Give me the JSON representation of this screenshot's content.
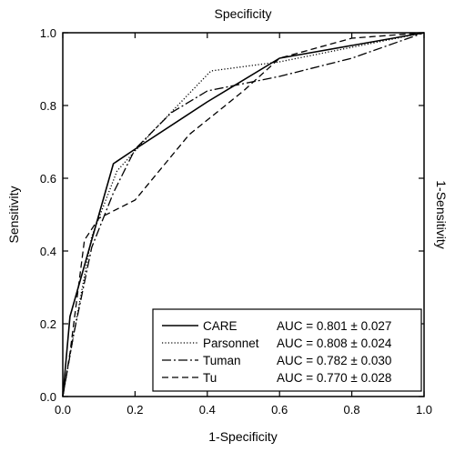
{
  "chart_data": {
    "type": "line",
    "xlabel": "1-Specificity",
    "ylabel": "Sensitivity",
    "top_label": "Specificity",
    "right_label": "1-Sensitivity",
    "xlim": [
      0,
      1
    ],
    "ylim": [
      0,
      1
    ],
    "x_ticks": [
      "0.0",
      "0.2",
      "0.4",
      "0.6",
      "0.8",
      "1.0"
    ],
    "y_ticks": [
      "0.0",
      "0.2",
      "0.4",
      "0.6",
      "0.8",
      "1.0"
    ],
    "grid": false,
    "legend_position": "bottom-right",
    "series": [
      {
        "name": "CARE",
        "auc": "AUC = 0.801 ± 0.027",
        "dash": "solid",
        "x": [
          0.0,
          0.02,
          0.14,
          0.2,
          0.4,
          0.6,
          0.8,
          1.0
        ],
        "y": [
          0.0,
          0.22,
          0.64,
          0.68,
          0.81,
          0.93,
          0.965,
          1.0
        ]
      },
      {
        "name": "Parsonnet",
        "auc": "AUC = 0.808 ± 0.024",
        "dash": "dotted",
        "x": [
          0.0,
          0.03,
          0.08,
          0.15,
          0.25,
          0.41,
          0.6,
          0.8,
          1.0
        ],
        "y": [
          0.0,
          0.17,
          0.44,
          0.62,
          0.73,
          0.895,
          0.92,
          0.96,
          1.0
        ]
      },
      {
        "name": "Tuman",
        "auc": "AUC = 0.782 ± 0.030",
        "dash": "dashdot",
        "x": [
          0.0,
          0.03,
          0.08,
          0.14,
          0.2,
          0.3,
          0.4,
          0.6,
          0.8,
          1.0
        ],
        "y": [
          0.0,
          0.17,
          0.41,
          0.56,
          0.68,
          0.78,
          0.84,
          0.88,
          0.93,
          1.0
        ]
      },
      {
        "name": "Tu",
        "auc": "AUC = 0.770 ± 0.028",
        "dash": "dashed",
        "x": [
          0.0,
          0.02,
          0.06,
          0.1,
          0.2,
          0.35,
          0.5,
          0.6,
          0.8,
          1.0
        ],
        "y": [
          0.0,
          0.12,
          0.43,
          0.49,
          0.54,
          0.72,
          0.84,
          0.93,
          0.985,
          1.0
        ]
      }
    ]
  }
}
